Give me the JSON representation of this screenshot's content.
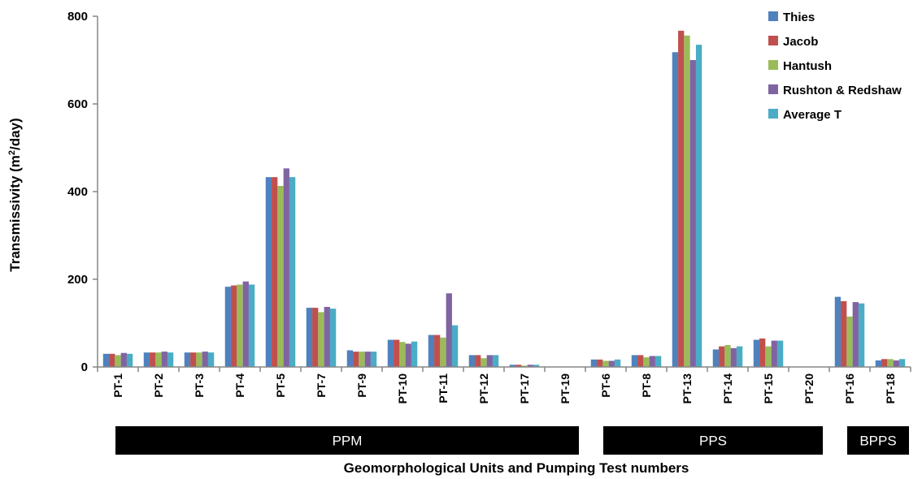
{
  "chart_data": {
    "type": "bar",
    "xlabel": "Geomorphological Units and Pumping Test numbers",
    "ylabel_main": "Transmissivity (m",
    "ylabel_sup": "2",
    "ylabel_end": "/day)",
    "ylim": [
      0,
      800
    ],
    "yticks": [
      0,
      200,
      400,
      600,
      800
    ],
    "grid": false,
    "legend_position": "top-right",
    "categories": [
      "PT-1",
      "PT-2",
      "PT-3",
      "PT-4",
      "PT-5",
      "PT-7",
      "PT-9",
      "PT-10",
      "PT-11",
      "PT-12",
      "PT-17",
      "PT-19",
      "PT-6",
      "PT-8",
      "PT-13",
      "PT-14",
      "PT-15",
      "PT-20",
      "PT-16",
      "PT-18"
    ],
    "series": [
      {
        "name": "Thies",
        "color": "#4F81BD",
        "values": [
          30,
          33,
          33,
          183,
          433,
          135,
          38,
          62,
          73,
          27,
          5,
          0,
          17,
          27,
          718,
          40,
          62,
          0,
          160,
          15
        ]
      },
      {
        "name": "Jacob",
        "color": "#C0504D",
        "values": [
          30,
          33,
          33,
          186,
          433,
          135,
          35,
          62,
          73,
          27,
          5,
          0,
          17,
          27,
          767,
          47,
          65,
          0,
          150,
          18
        ]
      },
      {
        "name": "Hantush",
        "color": "#9BBB59",
        "values": [
          27,
          33,
          33,
          188,
          413,
          125,
          35,
          57,
          67,
          20,
          3,
          0,
          14,
          22,
          756,
          50,
          47,
          0,
          115,
          18
        ]
      },
      {
        "name": "Rushton & Redshaw",
        "color": "#8064A2",
        "values": [
          32,
          35,
          35,
          195,
          453,
          137,
          35,
          53,
          168,
          27,
          5,
          0,
          14,
          25,
          700,
          43,
          60,
          0,
          148,
          15
        ]
      },
      {
        "name": "Average T",
        "color": "#4BACC6",
        "values": [
          30,
          33,
          33,
          188,
          433,
          133,
          35,
          58,
          95,
          27,
          5,
          0,
          17,
          25,
          735,
          47,
          60,
          0,
          145,
          18
        ]
      }
    ],
    "groups": [
      {
        "label": "PPM",
        "from": 0,
        "to": 11
      },
      {
        "label": "PPS",
        "from": 12,
        "to": 17
      },
      {
        "label": "BPPS",
        "from": 18,
        "to": 19
      }
    ]
  }
}
